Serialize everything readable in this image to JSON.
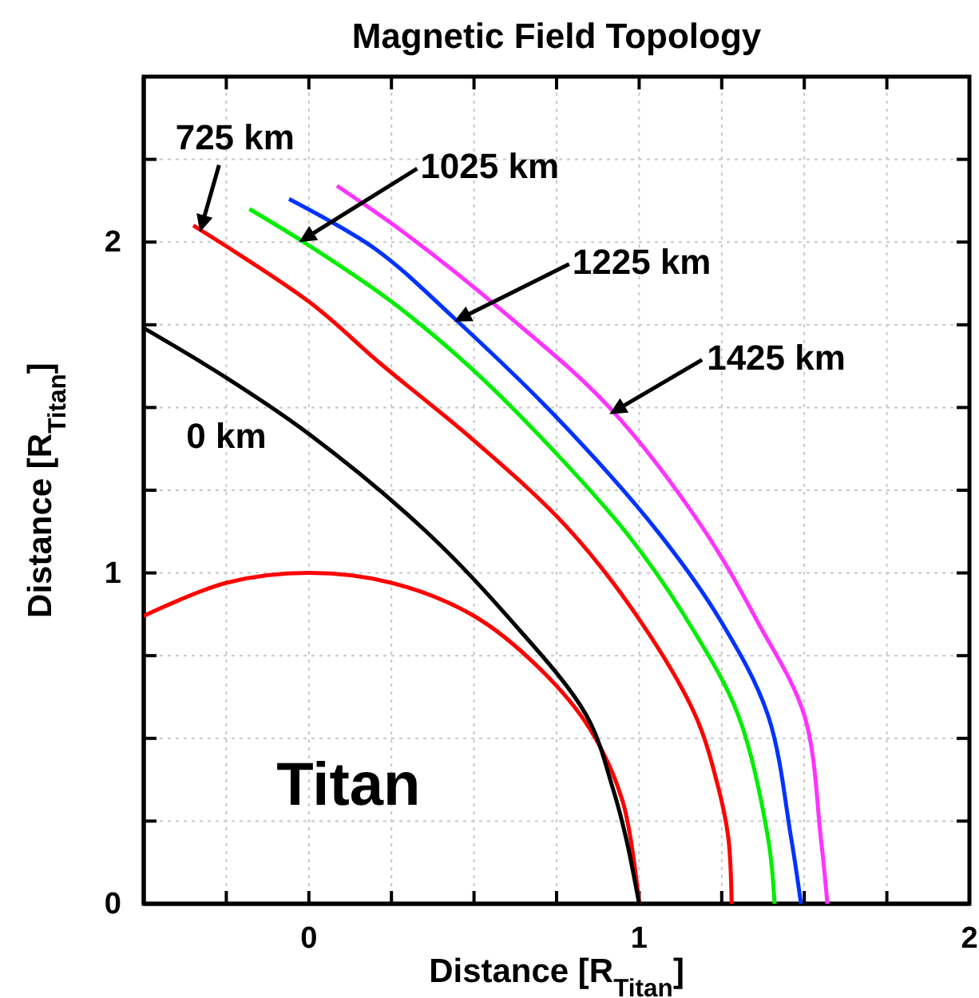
{
  "chart_data": {
    "type": "line",
    "title": "Magnetic Field Topology",
    "xlabel": "Distance [R$_{Titan}$]",
    "ylabel": "Distance [R$_{Titan}$]",
    "xlim": [
      -0.5,
      2
    ],
    "ylim": [
      0,
      2.5
    ],
    "xticks": [
      {
        "value": -0.25,
        "label": null
      },
      0,
      {
        "value": 0.25,
        "label": null
      },
      {
        "value": 0.5,
        "label": null
      },
      {
        "value": 0.75,
        "label": null
      },
      1,
      {
        "value": 1.25,
        "label": null
      },
      {
        "value": 1.5,
        "label": null
      },
      {
        "value": 1.75,
        "label": null
      },
      2
    ],
    "yticks": [
      0,
      {
        "value": 0.25,
        "label": null
      },
      {
        "value": 0.5,
        "label": null
      },
      {
        "value": 0.75,
        "label": null
      },
      1,
      {
        "value": 1.25,
        "label": null
      },
      {
        "value": 1.5,
        "label": null
      },
      {
        "value": 1.75,
        "label": null
      },
      2,
      {
        "value": 2.25,
        "label": null
      }
    ],
    "grid": true,
    "marker": "none",
    "line_style": "solid",
    "series": [
      {
        "color": "#ff0000",
        "x": [
          -0.5,
          -0.25,
          0,
          0.25,
          0.5,
          0.7,
          0.85,
          0.95,
          1
        ],
        "values": [
          0.87,
          0.97,
          1,
          0.97,
          0.87,
          0.71,
          0.53,
          0.31,
          0
        ]
      },
      {
        "color": "#000000",
        "x": [
          -0.5,
          -0.25,
          0,
          0.35,
          0.6,
          0.84,
          0.92,
          0.96,
          1
        ],
        "values": [
          1.74,
          1.59,
          1.42,
          1.13,
          0.87,
          0.57,
          0.35,
          0.2,
          0
        ]
      },
      {
        "color": "#ff0000",
        "x": [
          -0.35,
          0,
          0.22,
          0.5,
          0.78,
          1.0,
          1.17,
          1.24,
          1.27,
          1.28
        ],
        "values": [
          2.05,
          1.82,
          1.63,
          1.4,
          1.14,
          0.86,
          0.57,
          0.35,
          0.2,
          0
        ]
      },
      {
        "color": "#00ee00",
        "x": [
          -0.18,
          0,
          0.25,
          0.49,
          0.75,
          0.97,
          1.15,
          1.3,
          1.39,
          1.41
        ],
        "values": [
          2.1,
          1.99,
          1.82,
          1.62,
          1.36,
          1.11,
          0.85,
          0.57,
          0.2,
          0
        ]
      },
      {
        "color": "#0033ff",
        "x": [
          -0.06,
          0.2,
          0.44,
          0.75,
          1.06,
          1.25,
          1.39,
          1.46,
          1.49
        ],
        "values": [
          2.13,
          1.98,
          1.77,
          1.47,
          1.12,
          0.85,
          0.57,
          0.2,
          0
        ]
      },
      {
        "color": "#ff33ff",
        "x": [
          0.085,
          0.3,
          0.6,
          0.91,
          1.19,
          1.36,
          1.5,
          1.55,
          1.57
        ],
        "values": [
          2.17,
          2.02,
          1.78,
          1.5,
          1.14,
          0.85,
          0.57,
          0.2,
          0
        ]
      }
    ],
    "annotations": [
      {
        "text": "725 km",
        "x": -0.33,
        "y": 2.03
      },
      {
        "text": "1025 km",
        "x": -0.03,
        "y": 2.0
      },
      {
        "text": "1225 km",
        "x": 0.44,
        "y": 1.76
      },
      {
        "text": "1425 km",
        "x": 0.91,
        "y": 1.48
      },
      {
        "text": "0 km",
        "x": -0.25,
        "y": 1.59
      },
      "Titan"
    ]
  }
}
